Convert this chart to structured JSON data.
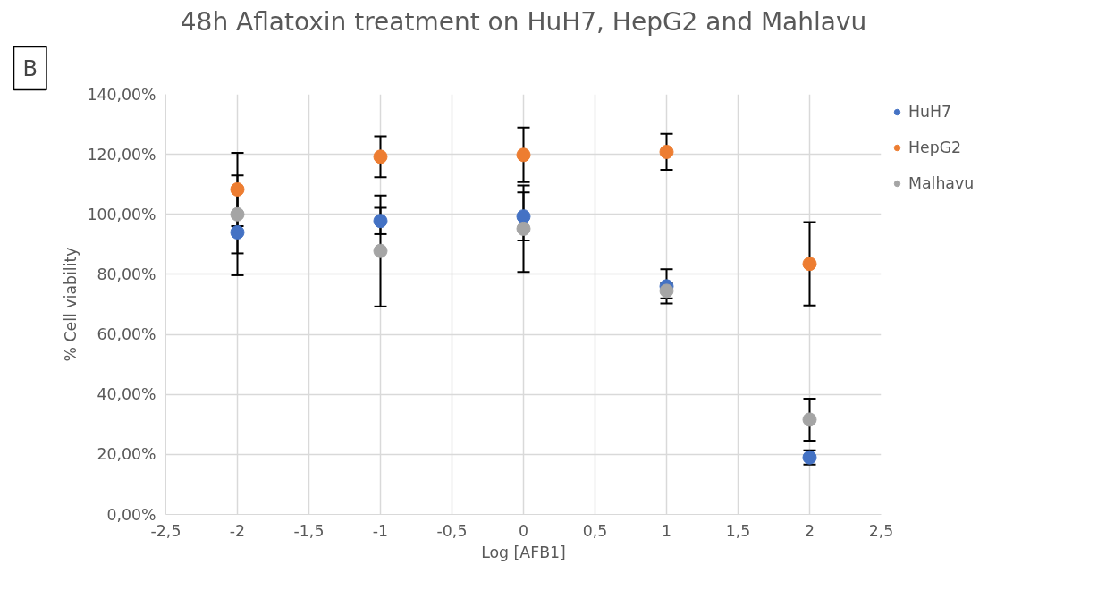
{
  "chart_data": {
    "type": "scatter",
    "title": "48h Aflatoxin treatment on HuH7, HepG2 and Mahlavu",
    "xlabel": "Log [AFB1]",
    "ylabel": "% Cell viability",
    "annotations": [
      "B"
    ],
    "x": [
      -2,
      -1,
      0,
      1,
      2
    ],
    "series": [
      {
        "name": "HuH7",
        "color": "#4472c4",
        "values": [
          94,
          97.8,
          99.3,
          76,
          19.0
        ],
        "errors": [
          14.3,
          4.4,
          8,
          5.7,
          2.4
        ]
      },
      {
        "name": "HepG2",
        "color": "#ed7d31",
        "values": [
          108.3,
          119.2,
          119.8,
          120.8,
          83.5
        ],
        "errors": [
          12.2,
          6.8,
          9.1,
          6,
          13.9
        ]
      },
      {
        "name": "Malhavu",
        "color": "#a5a5a5",
        "values": [
          100,
          87.8,
          95.2,
          74.5,
          31.6
        ],
        "errors": [
          13,
          18.5,
          14.4,
          2.5,
          7
        ]
      }
    ],
    "xlim": [
      -2.5,
      2.5
    ],
    "xticks": [
      {
        "value": -2.5,
        "label": "-2,5"
      },
      -2,
      {
        "value": -1.5,
        "label": "-1,5"
      },
      -1,
      {
        "value": -0.5,
        "label": "-0,5"
      },
      0,
      {
        "value": 0.5,
        "label": "0,5"
      },
      1,
      {
        "value": 1.5,
        "label": "1,5"
      },
      2,
      {
        "value": 2.5,
        "label": "2,5"
      }
    ],
    "ylim": [
      0,
      140
    ],
    "yticks": [
      {
        "value": 0,
        "label": "0,00%"
      },
      {
        "value": 20,
        "label": "20,00%"
      },
      {
        "value": 40,
        "label": "40,00%"
      },
      {
        "value": 60,
        "label": "60,00%"
      },
      {
        "value": 80,
        "label": "80,00%"
      },
      {
        "value": 100,
        "label": "100,00%"
      },
      {
        "value": 120,
        "label": "120,00%"
      },
      {
        "value": 140,
        "label": "140,00%"
      }
    ],
    "grid": true,
    "legend": "right",
    "marker": "circle"
  }
}
